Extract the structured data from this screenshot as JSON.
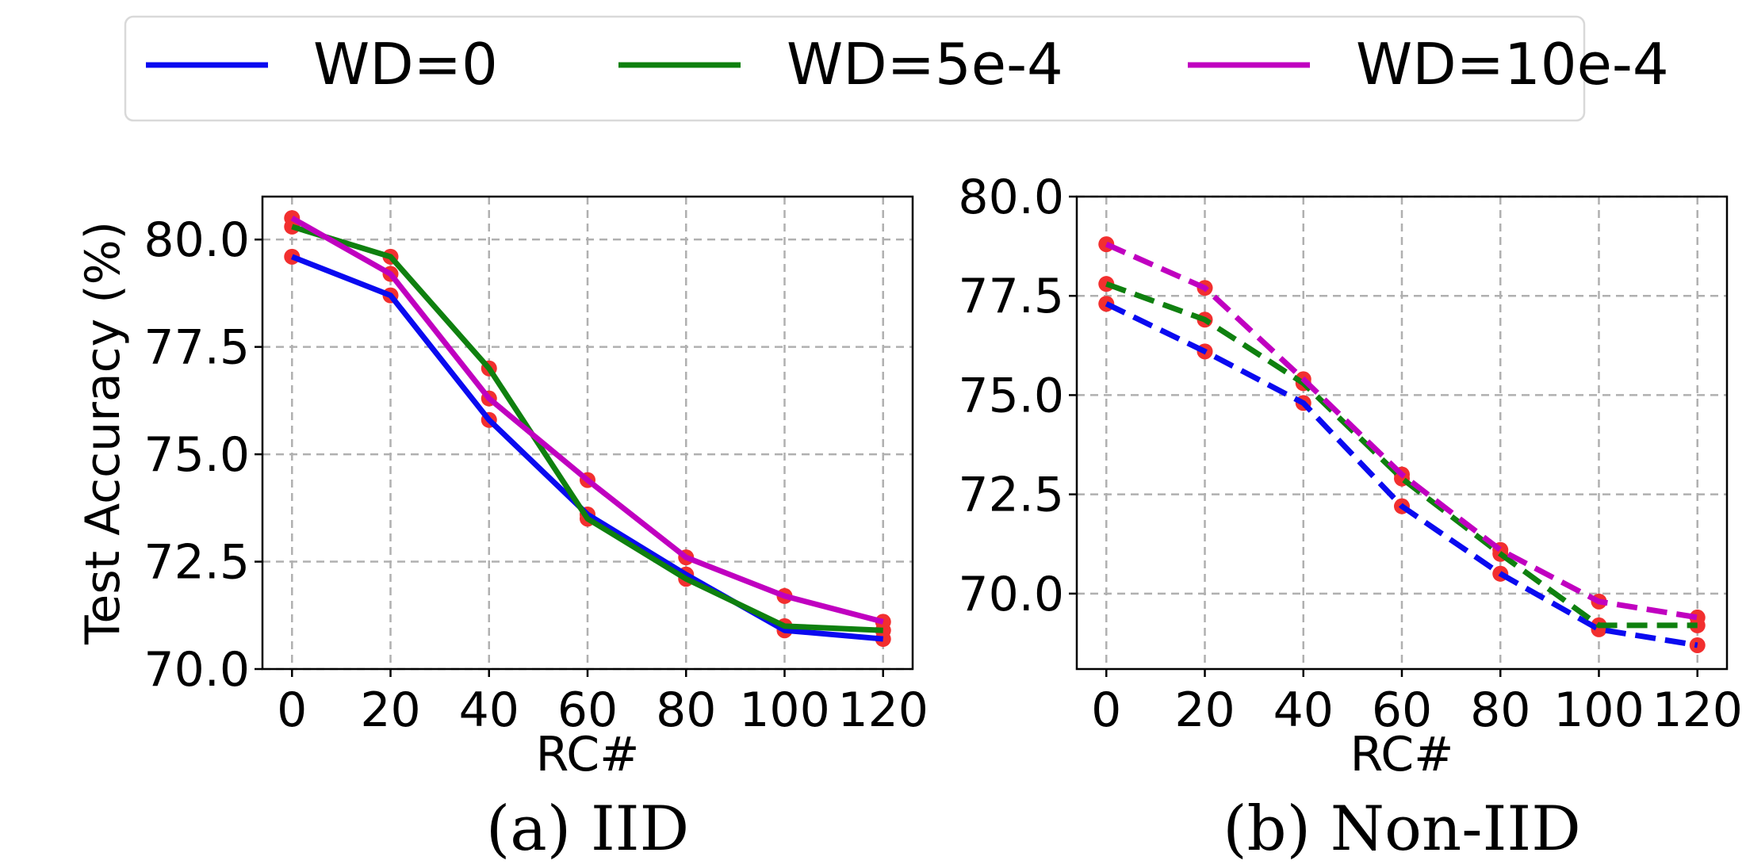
{
  "legend": {
    "items": [
      {
        "label": "WD=0",
        "color": "#0a0af0"
      },
      {
        "label": "WD=5e-4",
        "color": "#0f800f"
      },
      {
        "label": "WD=10e-4",
        "color": "#c000c0"
      }
    ]
  },
  "marker_color": "#f22f2f",
  "chart_data": [
    {
      "type": "line",
      "caption": "(a) IID",
      "xlabel": "RC#",
      "ylabel": "Test Accuracy (%)",
      "line_style": "solid",
      "x": [
        0,
        20,
        40,
        60,
        80,
        100,
        120
      ],
      "xticks": [
        "0",
        "20",
        "40",
        "60",
        "80",
        "100",
        "120"
      ],
      "yticks": [
        "70.0",
        "72.5",
        "75.0",
        "77.5",
        "80.0"
      ],
      "ytick_values": [
        70.0,
        72.5,
        75.0,
        77.5,
        80.0
      ],
      "xlim": [
        -6,
        126
      ],
      "ylim": [
        70.0,
        81.0
      ],
      "grid": true,
      "series": [
        {
          "name": "WD=0",
          "values": [
            79.6,
            78.7,
            75.8,
            73.6,
            72.2,
            70.9,
            70.7
          ]
        },
        {
          "name": "WD=5e-4",
          "values": [
            80.3,
            79.6,
            77.0,
            73.5,
            72.1,
            71.0,
            70.9
          ]
        },
        {
          "name": "WD=10e-4",
          "values": [
            80.5,
            79.2,
            76.3,
            74.4,
            72.6,
            71.7,
            71.1
          ]
        }
      ]
    },
    {
      "type": "line",
      "caption": "(b) Non-IID",
      "xlabel": "RC#",
      "ylabel": "",
      "line_style": "dashed",
      "x": [
        0,
        20,
        40,
        60,
        80,
        100,
        120
      ],
      "xticks": [
        "0",
        "20",
        "40",
        "60",
        "80",
        "100",
        "120"
      ],
      "yticks": [
        "70.0",
        "72.5",
        "75.0",
        "77.5",
        "80.0"
      ],
      "ytick_values": [
        70.0,
        72.5,
        75.0,
        77.5,
        80.0
      ],
      "xlim": [
        -6,
        126
      ],
      "ylim": [
        68.1,
        80.0
      ],
      "grid": true,
      "series": [
        {
          "name": "WD=0",
          "values": [
            77.3,
            76.1,
            74.8,
            72.2,
            70.5,
            69.1,
            68.7
          ]
        },
        {
          "name": "WD=5e-4",
          "values": [
            77.8,
            76.9,
            75.3,
            72.9,
            71.0,
            69.2,
            69.2
          ]
        },
        {
          "name": "WD=10e-4",
          "values": [
            78.8,
            77.7,
            75.4,
            73.0,
            71.1,
            69.8,
            69.4
          ]
        }
      ]
    }
  ]
}
